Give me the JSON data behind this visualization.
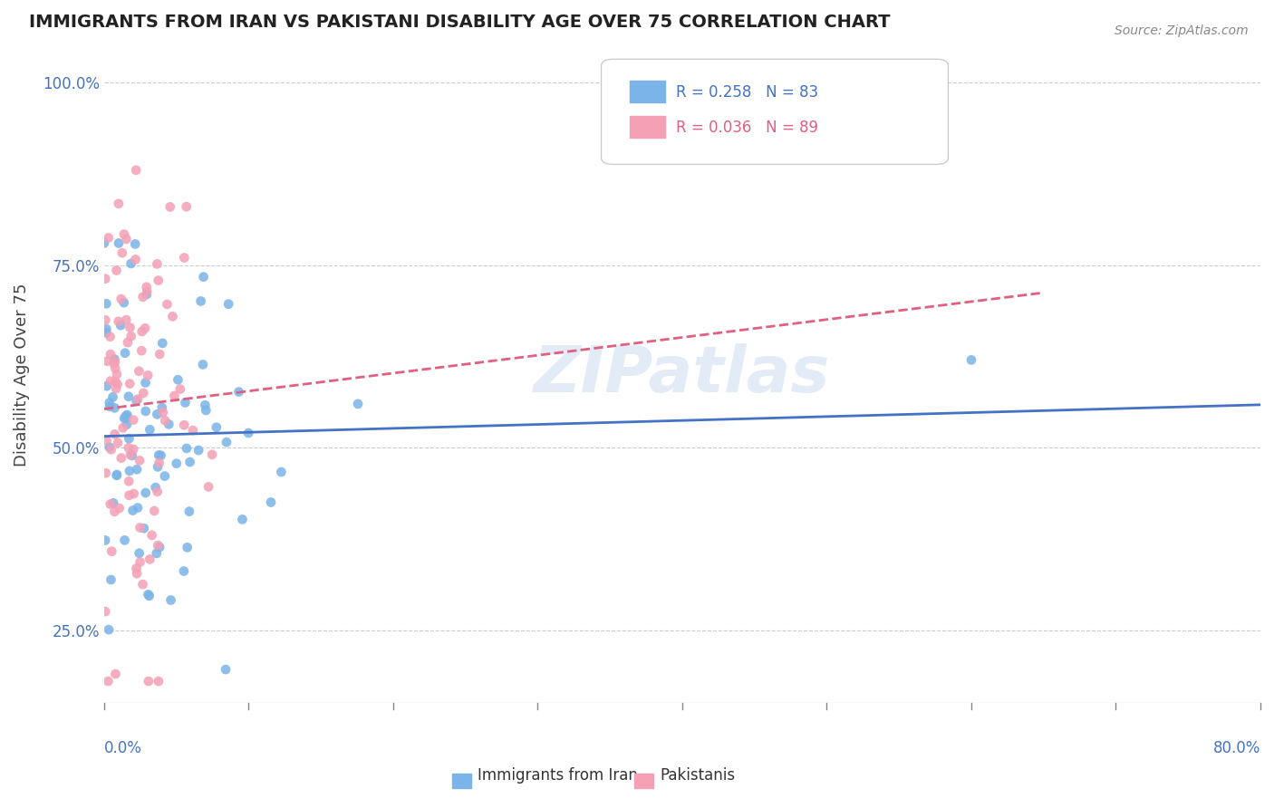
{
  "title": "IMMIGRANTS FROM IRAN VS PAKISTANI DISABILITY AGE OVER 75 CORRELATION CHART",
  "source": "Source: ZipAtlas.com",
  "ylabel": "Disability Age Over 75",
  "xmin": 0.0,
  "xmax": 0.8,
  "ymin": 0.15,
  "ymax": 1.05,
  "yticks": [
    0.25,
    0.5,
    0.75,
    1.0
  ],
  "ytick_labels": [
    "25.0%",
    "50.0%",
    "75.0%",
    "100.0%"
  ],
  "series1_label": "Immigrants from Iran",
  "series1_color": "#7ab4e8",
  "series1_R": 0.258,
  "series1_N": 83,
  "series2_label": "Pakistanis",
  "series2_color": "#f4a0b5",
  "series2_R": 0.036,
  "series2_N": 89,
  "line1_color": "#4472c4",
  "line2_color": "#e06080",
  "watermark": "ZIPatlas",
  "background_color": "#ffffff",
  "grid_color": "#cccccc",
  "title_color": "#222222",
  "axis_label_color": "#4472c4"
}
